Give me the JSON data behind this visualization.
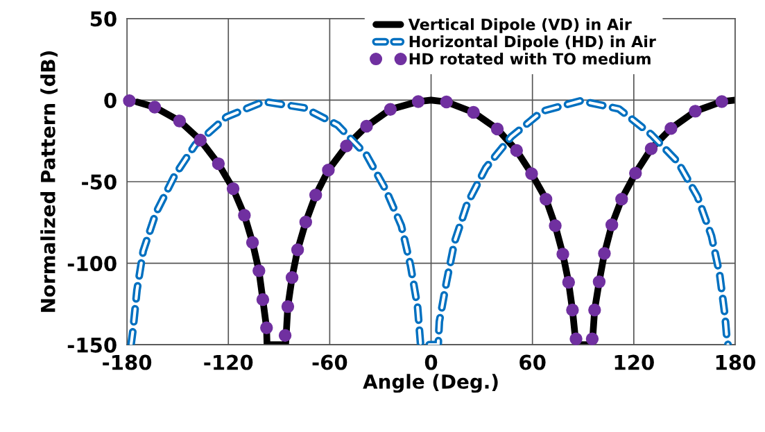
{
  "chart_data": {
    "type": "line",
    "xlabel": "Angle (Deg.)",
    "ylabel": "Normalized Pattern (dB)",
    "xlim": [
      -180,
      180
    ],
    "xticks": [
      -180,
      -120,
      -60,
      0,
      60,
      120,
      180
    ],
    "ylim": [
      -150,
      50
    ],
    "yticks": [
      -150,
      -100,
      -50,
      0,
      50
    ],
    "grid": true,
    "legend": "top right",
    "series": [
      {
        "name": "Vertical Dipole (VD) in Air",
        "color": "#000000",
        "line_style": "solid",
        "marker": "none",
        "x": [
          -174,
          -163.6,
          -148.9,
          -136.6,
          -125.9,
          -117.2,
          -110.5,
          -105.7,
          -101.9,
          -99.6,
          -97.4,
          -97.1,
          -86.1,
          -84.8,
          -82.3,
          -79.0,
          -74.2,
          -68.3,
          -60.8,
          -50.1,
          -38.2,
          -24.1,
          -7.6,
          0,
          9.1,
          25.1,
          39.2,
          50.6,
          59.5,
          68.0,
          73.5,
          78.0,
          81.4,
          83.7,
          85.8,
          95.4,
          96.8,
          99.5,
          102.6,
          107.0,
          112.8,
          121.0,
          130.3,
          142.0,
          156.4,
          172.1,
          180
        ],
        "values": [
          -1.2,
          -4.3,
          -12.8,
          -24.5,
          -39,
          -54.3,
          -70.6,
          -87.3,
          -104.6,
          -122.3,
          -139.6,
          -150,
          -150,
          -126.6,
          -108.8,
          -91.8,
          -74.8,
          -58.2,
          -42.9,
          -28.1,
          -16,
          -5.7,
          -0.9,
          0,
          -1.1,
          -7.5,
          -17.7,
          -30.9,
          -45.1,
          -60.7,
          -77,
          -94.4,
          -111.7,
          -128.7,
          -150,
          -150,
          -128.7,
          -111.4,
          -94,
          -76.5,
          -60.7,
          -44.8,
          -29.8,
          -17.4,
          -6.8,
          -0.9,
          0
        ]
      },
      {
        "name": "Horizontal Dipole (HD) in Air",
        "color": "#0070c0",
        "line_style": "dashed",
        "marker": "none",
        "x": [
          -177.6,
          -176.5,
          -174.1,
          -170.4,
          -162.9,
          -151.9,
          -139.6,
          -121.1,
          -99.2,
          -75.2,
          -55.3,
          -38.2,
          -26.8,
          -17.6,
          -12.1,
          -8.0,
          -6.2,
          4.2,
          4.9,
          9.1,
          13.9,
          21.4,
          32.4,
          47.5,
          65.9,
          88.5,
          111.2,
          130.3,
          146.1,
          157.7,
          166,
          170.8,
          173.9,
          175.3,
          175.8
        ],
        "values": [
          -150,
          -141.4,
          -116.6,
          -92.5,
          -69.2,
          -46.5,
          -27.3,
          -10.3,
          -0.9,
          -4.7,
          -15.3,
          -33.7,
          -55,
          -77,
          -101.7,
          -126.6,
          -150,
          -150,
          -135.8,
          -111.7,
          -86.9,
          -63.5,
          -41.5,
          -22.4,
          -6.8,
          -0.4,
          -5.4,
          -21,
          -38,
          -59.2,
          -83.3,
          -106.7,
          -131.5,
          -148.5,
          -150
        ]
      },
      {
        "name": "HD rotated with TO medium",
        "color": "#7030a0",
        "type": "scatter",
        "marker": "circle",
        "x": [
          -178.6,
          -163.6,
          -148.9,
          -136.6,
          -125.9,
          -117.2,
          -110.5,
          -105.7,
          -101.9,
          -99.6,
          -97.4,
          -86.4,
          -84.8,
          -82.3,
          -79.0,
          -74.2,
          -68.3,
          -60.8,
          -50.1,
          -38.2,
          -24.1,
          -7.6,
          9.1,
          25.1,
          39.2,
          50.6,
          59.5,
          68.0,
          73.5,
          78.0,
          81.4,
          83.7,
          85.8,
          95.4,
          96.8,
          99.5,
          102.6,
          107.0,
          112.8,
          121.0,
          130.3,
          142.0,
          156.4,
          172.1
        ],
        "values": [
          -0.4,
          -4.3,
          -12.8,
          -24.5,
          -39,
          -54.3,
          -70.6,
          -87.3,
          -104.6,
          -122.3,
          -139.6,
          -144.3,
          -126.6,
          -108.8,
          -91.8,
          -74.8,
          -58.2,
          -42.9,
          -28.1,
          -16,
          -5.7,
          -0.9,
          -1.1,
          -7.5,
          -17.7,
          -30.9,
          -45.1,
          -60.7,
          -77,
          -94.4,
          -111.7,
          -128.7,
          -146.4,
          -146.4,
          -128.7,
          -111.4,
          -94,
          -76.5,
          -60.7,
          -44.8,
          -29.8,
          -17.4,
          -6.8,
          -0.9
        ]
      }
    ]
  }
}
